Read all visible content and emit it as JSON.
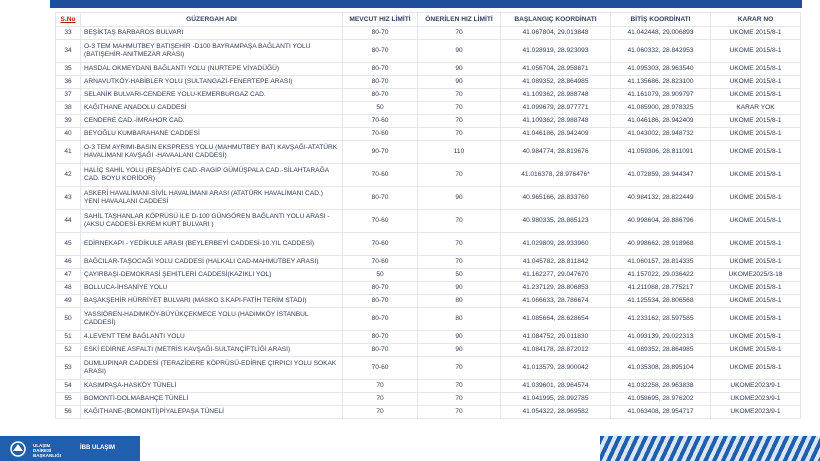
{
  "table": {
    "header": [
      "S.No",
      "GÜZERGAH ADI",
      "MEVCUT HIZ LİMİTİ",
      "ÖNERİLEN HIZ LİMİTİ",
      "BAŞLANGIÇ KOORDİNATI",
      "BİTİŞ KOORDİNATI",
      "KARAR NO"
    ],
    "rows": [
      [
        33,
        "BEŞİKTAŞ BARBAROS BULVARI",
        "80-70",
        70,
        "41.067804, 29.013848",
        "41.042448, 29.006893",
        "UKOME 2015/8-1"
      ],
      [
        34,
        "O-3 TEM MAHMUTBEY BATIŞEHİR -D100 BAYRAMPAŞA BAĞLANTI YOLU (BATIŞEHİR-ANITMEZAR ARASI)",
        "80-70",
        90,
        "41.028919, 28.923093",
        "41.060332, 28.842953",
        "UKOME 2015/8-1"
      ],
      [
        35,
        "HASDAL OKMEYDANI BAĞLANTI YOLU (NURTEPE VİYADÜĞÜ)",
        "80-70",
        90,
        "41.056704, 28.958871",
        "41.095303, 28.963540",
        "UKOME 2015/8-1"
      ],
      [
        36,
        "ARNAVUTKÖY-HABİBLER YOLU (SULTANGAZİ-FENERTEPE ARASI)",
        "80-70",
        90,
        "41.089352, 28.864985",
        "41.135686, 28.823100",
        "UKOME 2015/8-1"
      ],
      [
        37,
        "SELANİK BULVARI-CENDERE YOLU-KEMERBURGAZ CAD.",
        "80-70",
        70,
        "41.109362, 28.988748",
        "41.161079, 28.909797",
        "UKOME 2015/8-1"
      ],
      [
        38,
        "KAĞITHANE ANADOLU CADDESİ",
        "50",
        70,
        "41.099679, 28.977771",
        "41.085900, 28.978325",
        "KARAR YOK"
      ],
      [
        39,
        "CENDERE CAD.-İMRAHOR CAD.",
        "70-60",
        70,
        "41.109362, 28.988748",
        "41.046186, 28.942409",
        "UKOME 2015/8-1"
      ],
      [
        40,
        "BEYOĞLU KUMBARAHANE CADDESİ",
        "70-60",
        70,
        "41.046186, 28.942409",
        "41.043002, 28.948732",
        "UKOME 2015/8-1"
      ],
      [
        41,
        "O-3 TEM AYRIMI-BASIN EKSPRESS YOLU (MAHMUTBEY BATI KAVŞAĞI-ATATÜRK HAVALİMANI KAVŞAĞI -HAVAALANI CADDESİ)",
        "90-70",
        110,
        "40.984774, 28.819676",
        "41.059306, 28.811091",
        "UKOME 2015/8-1"
      ],
      [
        42,
        "HALİÇ SAHİL YOLU (REŞADİYE CAD.-RAGIP GÜMÜŞPALA CAD.-SİLAHTARAĞA CAD. BOYU KORİDOR)",
        "70-60",
        70,
        "41.016378, 28.976476*",
        "41.072859, 28.944347",
        "UKOME 2015/8-1"
      ],
      [
        43,
        "ASKERİ HAVALİMANI-SİVİL HAVALİMANI ARASI (ATATÜRK HAVALİMANI CAD.) YENİ HAVAALANI CADDESİ",
        "80-70",
        90,
        "40.965166, 28.833760",
        "40.984132, 28.822449",
        "UKOME 2015/8-1"
      ],
      [
        44,
        "SAHİL TAŞHANLAR KÖPRÜSÜ İLE D-100 GÜNGÖREN BAĞLANTI YOLU ARASI - (AKSU CADDESİ-EKREM KURT BULVARI )",
        "70-60",
        70,
        "40.980335, 28.885123",
        "40.998604, 28.886796",
        "UKOME 2015/8-1"
      ],
      [
        45,
        "EDİRNEKAPI - YEDİKULE ARASI (BEYLERBEYİ CADDESİ-10.YIL CADDESİ)",
        "70-60",
        70,
        "41.029809, 28.933960",
        "40.998662, 28.918968",
        "UKOME 2015/8-1"
      ],
      [
        46,
        "BAĞCILAR-TAŞOCAĞI YOLU CADDESİ (HALKALI CAD-MAHMUTBEY ARASI)",
        "70-60",
        70,
        "41.045782, 28.811842",
        "41.060157, 28.814335",
        "UKOME 2015/8-1"
      ],
      [
        47,
        "ÇAYIRBAŞI-DEMOKRASİ ŞEHİTLERİ CADDESİ(KAZIKLI YOL)",
        "50",
        50,
        "41.162277, 29.047670",
        "41.157022, 29.036422",
        "UKOME2025/3-18"
      ],
      [
        48,
        "BOLLUCA-İHSANİYE YOLU",
        "80-70",
        90,
        "41.237129, 28.806853",
        "41.211088, 28.775217",
        "UKOME 2015/8-1"
      ],
      [
        49,
        "BAŞAKŞEHİR HÜRRİYET BULVARI (MASKO 3.KAPI-FATİH TERİM STADI)",
        "80-70",
        80,
        "41.066633, 28.786674",
        "41.125534, 28.806568",
        "UKOME 2015/8-1"
      ],
      [
        50,
        "YASSIÖREN-HADIMKÖY-BÜYÜKÇEKMECE YOLU (HADIMKÖY İSTANBUL CADDESİ)",
        "80-70",
        80,
        "41.085664, 28.628654",
        "41.233162, 28.597585",
        "UKOME 2015/8-1"
      ],
      [
        51,
        "4.LEVENT TEM BAĞLANTI YOLU",
        "80-70",
        90,
        "41.084752, 29.011830",
        "41.093139, 29.022313",
        "UKOME 2015/8-1"
      ],
      [
        52,
        "ESKİ EDİRNE ASFALTI (METRİS KAVŞAĞI-SULTANÇİFTLİĞİ ARASI)",
        "80-70",
        90,
        "41.084178, 28.872012",
        "41.089352, 28.864985",
        "UKOME 2015/8-1"
      ],
      [
        53,
        "DUMLUPINAR CADDESİ (TERAZİDERE KÖPRÜSÜ-EDİRNE ÇIRPICI YOLU SOKAK ARASI)",
        "70-60",
        70,
        "41.013579, 28.900042",
        "41.035308, 28.895104",
        "UKOME 2015/8-1"
      ],
      [
        54,
        "KASIMPAŞA-HASKÖY TÜNELİ",
        "70",
        70,
        "41.039601, 28.964574",
        "41.032258, 28.963838",
        "UKOME2023/9-1"
      ],
      [
        55,
        "BOMONTİ-DOLMABAHÇE TÜNELİ",
        "70",
        70,
        "41.041995, 28.992785",
        "41.058695, 28.976202",
        "UKOME2023/9-1"
      ],
      [
        56,
        "KAĞITHANE-(BOMONTİ)PİYALEPAŞA TÜNELİ",
        "70",
        70,
        "41.054322, 28.969582",
        "41.063408, 28.954717",
        "UKOME2023/9-1"
      ]
    ]
  },
  "footer": {
    "department": "ULAŞIM DAİRESİ BAŞKANLIĞI",
    "brand": "İBB ULAŞIM"
  }
}
